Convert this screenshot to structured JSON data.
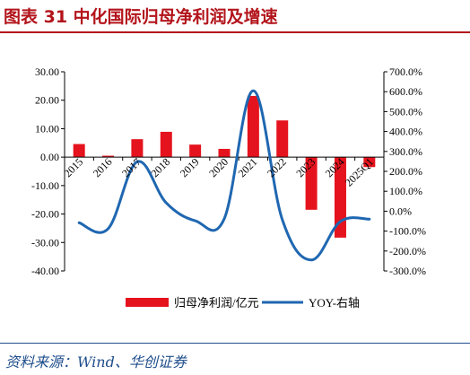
{
  "header": {
    "title": "图表 31   中化国际归母净利润及增速"
  },
  "footer": {
    "source": "资料来源：Wind、华创证券"
  },
  "colors": {
    "bar": "#e5131d",
    "line": "#1f67b1",
    "title": "#b3141b",
    "source": "#1e4e8c"
  },
  "chart_data": {
    "type": "bar",
    "title": "",
    "categories": [
      "2015",
      "2016",
      "2017",
      "2018",
      "2019",
      "2020",
      "2021",
      "2022",
      "2023",
      "2024",
      "2025Q1"
    ],
    "y_left": {
      "min": -40,
      "max": 30,
      "step": 10,
      "ticks": [
        "30.00",
        "20.00",
        "10.00",
        "0.00",
        "-10.00",
        "-20.00",
        "-30.00",
        "-40.00"
      ]
    },
    "y_right": {
      "min": -300,
      "max": 700,
      "step": 100,
      "ticks": [
        "700.0%",
        "600.0%",
        "500.0%",
        "400.0%",
        "300.0%",
        "200.0%",
        "100.0%",
        "0.0%",
        "-100.0%",
        "-200.0%",
        "-300.0%"
      ]
    },
    "series": [
      {
        "name": "归母净利润/亿元",
        "kind": "bar",
        "axis": "left",
        "values": [
          4.6,
          0.5,
          6.3,
          8.9,
          4.4,
          2.9,
          21.5,
          12.9,
          -18.5,
          -28.3,
          -3.5
        ]
      },
      {
        "name": "YOY-右轴",
        "kind": "line",
        "axis": "right",
        "values": [
          -58,
          -88,
          248,
          42,
          -48,
          -38,
          605,
          -42,
          -245,
          -52,
          -40
        ]
      }
    ],
    "legend_position": "bottom",
    "grid": false
  }
}
